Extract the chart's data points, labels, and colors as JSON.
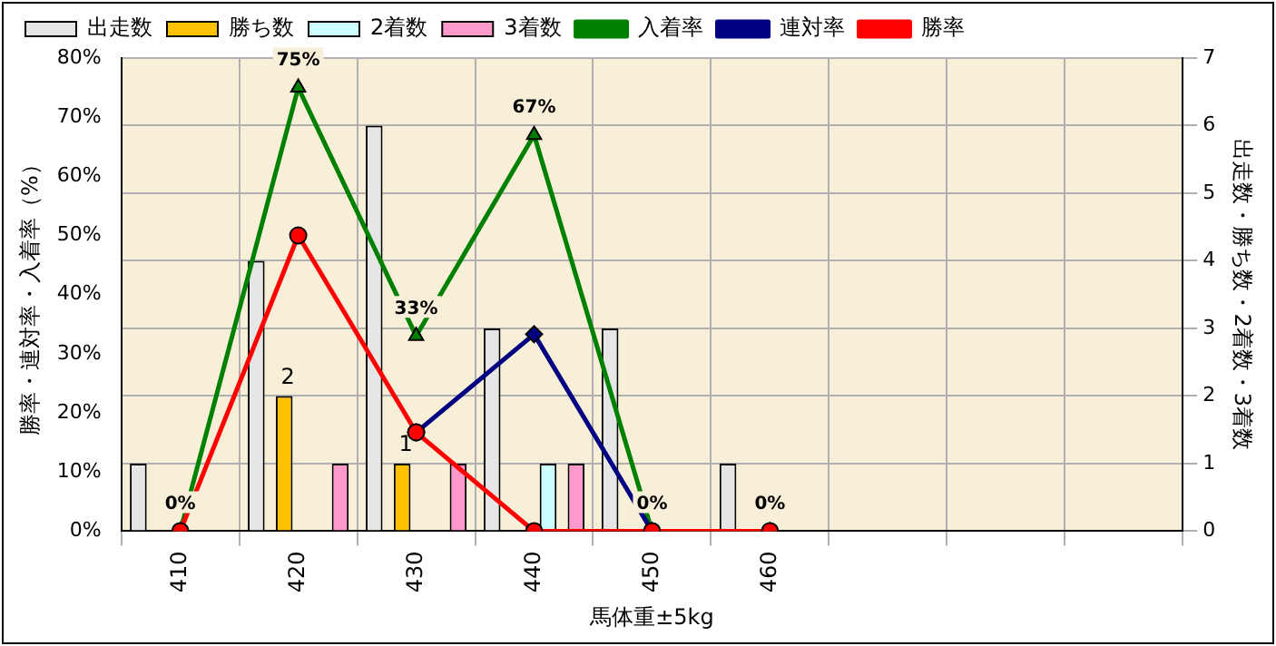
{
  "chart_data": {
    "type": "bar",
    "xlabel": "馬体重±5kg",
    "ylabel": "勝率・連対率・入着率（%）",
    "y2label": "出走数・勝ち数・2着数・3着数",
    "categories": [
      "410",
      "420",
      "430",
      "440",
      "450",
      "460",
      null,
      null,
      null
    ],
    "series": [
      {
        "name": "出走数",
        "axis": "y2",
        "color": "#e6e6e6",
        "values": [
          1,
          4,
          6,
          3,
          3,
          1,
          null,
          null,
          null
        ]
      },
      {
        "name": "勝ち数",
        "axis": "y2",
        "color": "#ffc000",
        "values": [
          0,
          2,
          1,
          0,
          0,
          0,
          null,
          null,
          null
        ],
        "value_labels": [
          null,
          "2",
          "1",
          null,
          null,
          null,
          null,
          null,
          null
        ]
      },
      {
        "name": "2着数",
        "axis": "y2",
        "color": "#ccffff",
        "values": [
          0,
          0,
          0,
          1,
          0,
          0,
          null,
          null,
          null
        ]
      },
      {
        "name": "3着数",
        "axis": "y2",
        "color": "#ff99cc",
        "values": [
          0,
          1,
          1,
          1,
          0,
          0,
          null,
          null,
          null
        ]
      },
      {
        "name": "入着率",
        "type": "line",
        "axis": "y",
        "color": "#008000",
        "marker": "triangle",
        "values": [
          0,
          75,
          33,
          67,
          0,
          0,
          null,
          null,
          null
        ],
        "value_labels": [
          "0%",
          "75%",
          "33%",
          "67%",
          "0%",
          "0%",
          null,
          null,
          null
        ]
      },
      {
        "name": "連対率",
        "type": "line",
        "axis": "y",
        "color": "#000080",
        "marker": "diamond",
        "values": [
          null,
          null,
          16.7,
          33.3,
          0,
          null,
          null,
          null,
          null
        ]
      },
      {
        "name": "勝率",
        "type": "line",
        "axis": "y",
        "color": "#ff0000",
        "marker": "circle",
        "values": [
          0,
          50,
          16.7,
          0,
          0,
          0,
          null,
          null,
          null
        ]
      }
    ],
    "ylim": [
      0,
      80
    ],
    "yticks": [
      {
        "value": 0,
        "label": "0%"
      },
      {
        "value": 10,
        "label": "10%"
      },
      {
        "value": 20,
        "label": "20%"
      },
      {
        "value": 30,
        "label": "30%"
      },
      {
        "value": 40,
        "label": "40%"
      },
      {
        "value": 50,
        "label": "50%"
      },
      {
        "value": 60,
        "label": "60%"
      },
      {
        "value": 70,
        "label": "70%"
      },
      {
        "value": 80,
        "label": "80%"
      }
    ],
    "y2lim": [
      0,
      7
    ],
    "y2ticks": [
      0,
      1,
      2,
      3,
      4,
      5,
      6,
      7
    ],
    "grid": true,
    "legend": "top"
  }
}
